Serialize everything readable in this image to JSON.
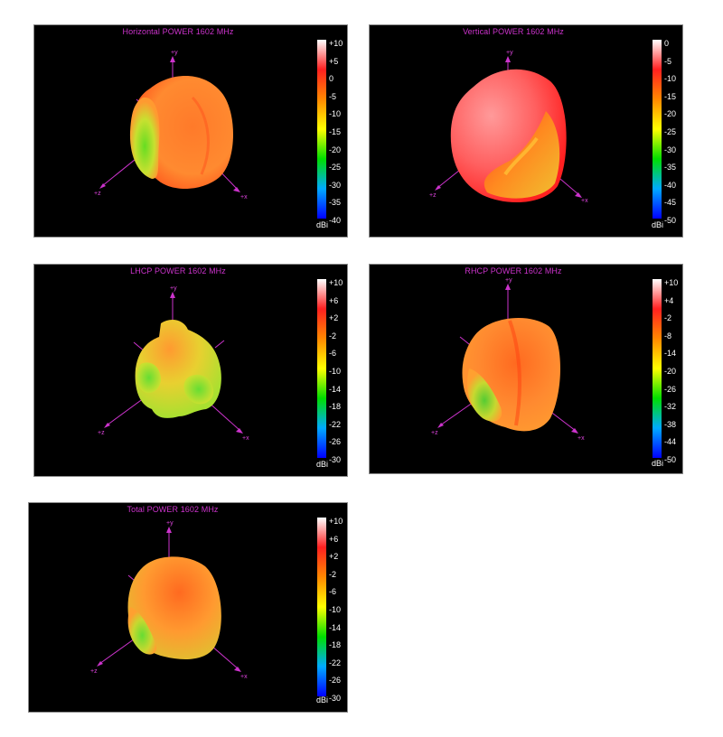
{
  "panels": [
    {
      "title": "Horizontal POWER 1602  MHz",
      "unit": "dBi",
      "ticks": [
        "+10",
        "+5",
        "0",
        "-5",
        "-10",
        "-15",
        "-20",
        "-25",
        "-30",
        "-35",
        "-40"
      ],
      "axes": {
        "x": "+x",
        "y": "+y",
        "z": "+z"
      }
    },
    {
      "title": "Vertical POWER 1602  MHz",
      "unit": "dBi",
      "ticks": [
        "0",
        "-5",
        "-10",
        "-15",
        "-20",
        "-25",
        "-30",
        "-35",
        "-40",
        "-45",
        "-50"
      ],
      "axes": {
        "x": "+x",
        "y": "+y",
        "z": "+z"
      }
    },
    {
      "title": "LHCP POWER 1602  MHz",
      "unit": "dBi",
      "ticks": [
        "+10",
        "+6",
        "+2",
        "-2",
        "-6",
        "-10",
        "-14",
        "-18",
        "-22",
        "-26",
        "-30"
      ],
      "axes": {
        "x": "+x",
        "y": "+y",
        "z": "+z"
      }
    },
    {
      "title": "RHCP POWER 1602  MHz",
      "unit": "dBi",
      "ticks": [
        "+10",
        "+4",
        "-2",
        "-8",
        "-14",
        "-20",
        "-26",
        "-32",
        "-38",
        "-44",
        "-50"
      ],
      "axes": {
        "x": "+x",
        "y": "+y",
        "z": "+z"
      }
    },
    {
      "title": "Total POWER 1602  MHz",
      "unit": "dBi",
      "ticks": [
        "+10",
        "+6",
        "+2",
        "-2",
        "-6",
        "-10",
        "-14",
        "-18",
        "-22",
        "-26",
        "-30"
      ],
      "axes": {
        "x": "+x",
        "y": "+y",
        "z": "+z"
      }
    }
  ],
  "colors": {
    "colorbar_stops": [
      "#ffffff",
      "#ff2020",
      "#ff8800",
      "#ffff00",
      "#00dd00",
      "#00aaff",
      "#0000ff"
    ],
    "axis": "#cc33cc",
    "title": "#cc33cc"
  }
}
